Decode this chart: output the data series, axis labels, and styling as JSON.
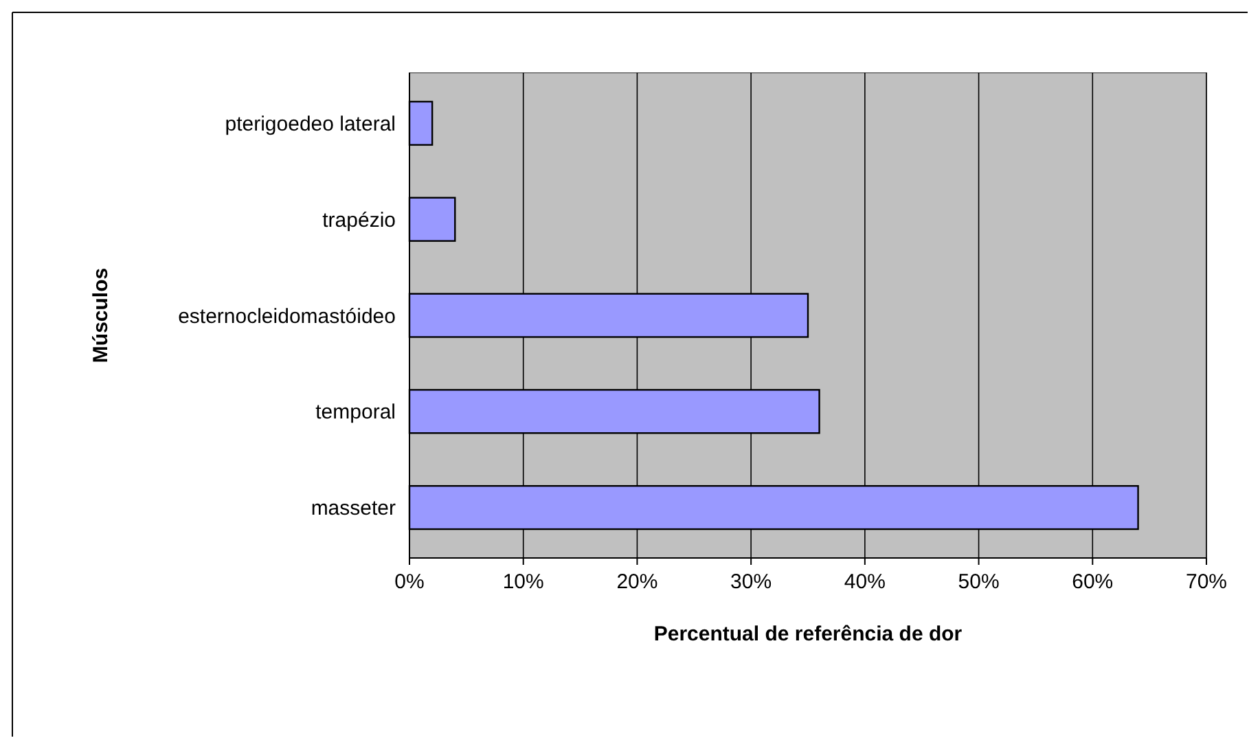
{
  "chart_data": {
    "type": "bar",
    "orientation": "horizontal",
    "xlabel": "Percentual de referência de dor",
    "ylabel": "Músculos",
    "categories": [
      "pterigoedeo lateral",
      "trapézio",
      "esternocleidomastóideo",
      "temporal",
      "masseter"
    ],
    "values": [
      2,
      4,
      35,
      36,
      64
    ],
    "color": "#9999ff",
    "xlim": [
      0,
      70
    ],
    "xticks": [
      {
        "value": 0,
        "label": "0%"
      },
      {
        "value": 10,
        "label": "10%"
      },
      {
        "value": 20,
        "label": "20%"
      },
      {
        "value": 30,
        "label": "30%"
      },
      {
        "value": 40,
        "label": "40%"
      },
      {
        "value": 50,
        "label": "50%"
      },
      {
        "value": 60,
        "label": "60%"
      },
      {
        "value": 70,
        "label": "70%"
      }
    ],
    "grid": "x"
  }
}
